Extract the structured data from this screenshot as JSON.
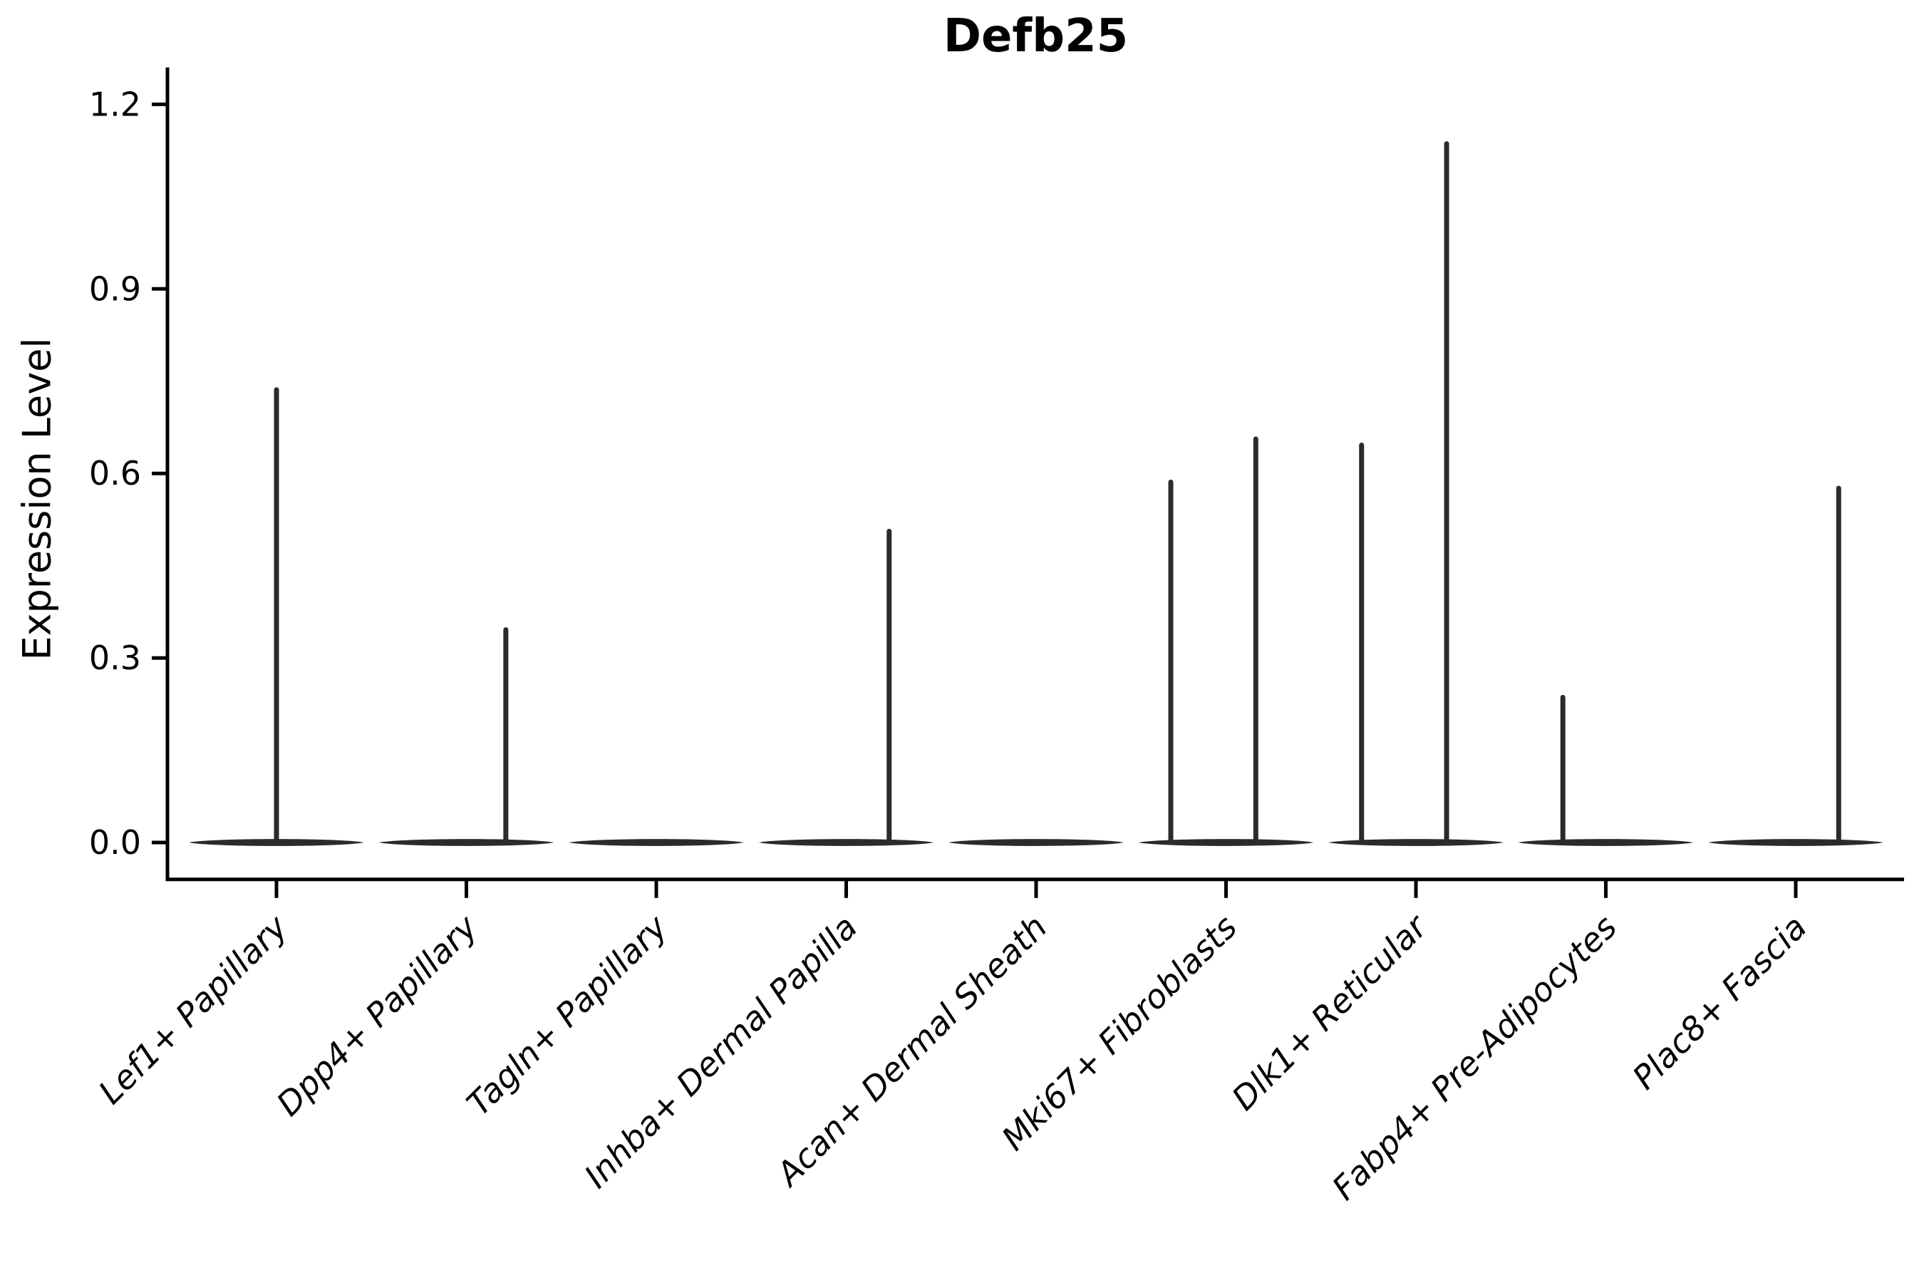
{
  "figure": {
    "title": "Defb25",
    "background_color": "#ffffff"
  },
  "chart_data": {
    "type": "violin",
    "title": "Defb25",
    "xlabel": "",
    "ylabel": "Expression Level",
    "ylim": [
      -0.06,
      1.26
    ],
    "yticks": [
      0.0,
      0.3,
      0.6,
      0.9,
      1.2
    ],
    "ytick_labels": [
      "0.0",
      "0.3",
      "0.6",
      "0.9",
      "1.2"
    ],
    "grid": false,
    "legend": "none",
    "label_rotation_deg": 45,
    "categories": [
      "Lef1+ Papillary",
      "Dpp4+ Papillary",
      "Tagln+ Papillary",
      "Inhba+ Dermal Papilla",
      "Acan+ Dermal Sheath",
      "Mki67+ Fibroblasts",
      "Dlk1+ Reticular",
      "Fabp4+ Pre-Adipocytes",
      "Plac8+ Fascia"
    ],
    "series": [
      {
        "name": "Lef1+ Papillary",
        "baseline_value": 0.0,
        "spikes": [
          {
            "dx": 0.0,
            "value": 0.74
          }
        ]
      },
      {
        "name": "Dpp4+ Papillary",
        "baseline_value": 0.0,
        "spikes": [
          {
            "dx": 0.45,
            "value": 0.35
          }
        ]
      },
      {
        "name": "Tagln+ Papillary",
        "baseline_value": 0.0,
        "spikes": []
      },
      {
        "name": "Inhba+ Dermal Papilla",
        "baseline_value": 0.0,
        "spikes": [
          {
            "dx": 0.49,
            "value": 0.51
          }
        ]
      },
      {
        "name": "Acan+ Dermal Sheath",
        "baseline_value": 0.0,
        "spikes": []
      },
      {
        "name": "Mki67+ Fibroblasts",
        "baseline_value": 0.0,
        "spikes": [
          {
            "dx": -0.63,
            "value": 0.59
          },
          {
            "dx": 0.34,
            "value": 0.66
          }
        ]
      },
      {
        "name": "Dlk1+ Reticular",
        "baseline_value": 0.0,
        "spikes": [
          {
            "dx": -0.62,
            "value": 0.65
          },
          {
            "dx": 0.35,
            "value": 1.14
          }
        ]
      },
      {
        "name": "Fabp4+ Pre-Adipocytes",
        "baseline_value": 0.0,
        "spikes": [
          {
            "dx": -0.49,
            "value": 0.24
          }
        ]
      },
      {
        "name": "Plac8+ Fascia",
        "baseline_value": 0.0,
        "spikes": [
          {
            "dx": 0.49,
            "value": 0.58
          }
        ]
      }
    ],
    "colors": {
      "violin_fill": "#2b2b2b",
      "axis": "#000000",
      "text": "#000000",
      "background": "#ffffff"
    }
  }
}
